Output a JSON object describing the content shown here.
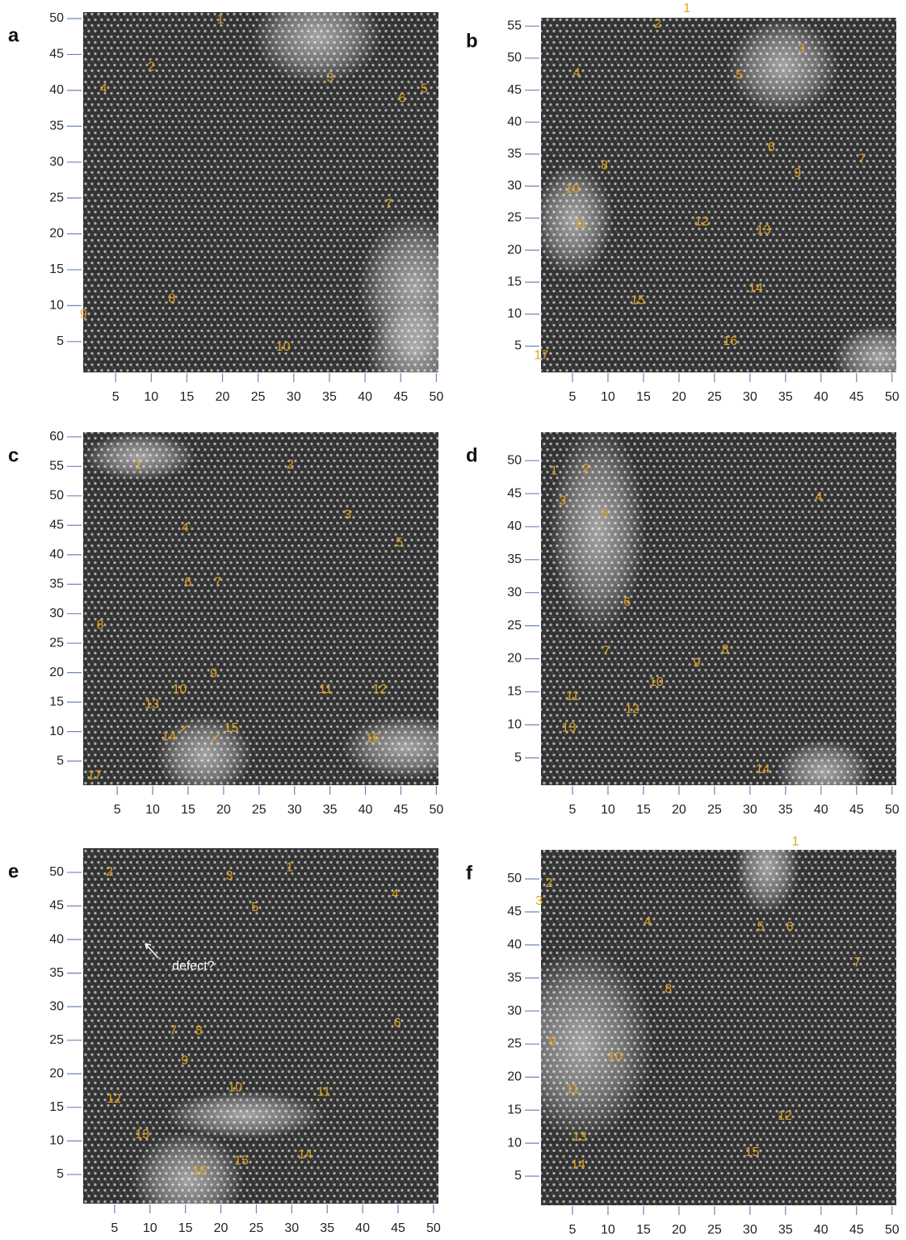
{
  "chart_data": [
    {
      "type": "image",
      "panel": "a",
      "xlim": [
        0.45,
        50.3
      ],
      "ylim": [
        0.7,
        50.9
      ],
      "xticks": [
        5,
        10,
        15,
        20,
        25,
        30,
        35,
        40,
        45,
        50
      ],
      "yticks": [
        5,
        10,
        15,
        20,
        25,
        30,
        35,
        40,
        45,
        50
      ],
      "label_color": "#e3a21a",
      "annotations": [
        {
          "label": "1",
          "x": 19.7,
          "y": 49.8
        },
        {
          "label": "2",
          "x": 10.0,
          "y": 43.2
        },
        {
          "label": "3",
          "x": 35.1,
          "y": 41.7
        },
        {
          "label": "4",
          "x": 3.3,
          "y": 40.2
        },
        {
          "label": "5",
          "x": 48.3,
          "y": 40.2
        },
        {
          "label": "6",
          "x": 45.2,
          "y": 38.8
        },
        {
          "label": "7",
          "x": 43.3,
          "y": 24.1
        },
        {
          "label": "8",
          "x": 12.9,
          "y": 10.9
        },
        {
          "label": "9",
          "x": 0.5,
          "y": 8.7
        },
        {
          "label": "10",
          "x": 28.5,
          "y": 4.2
        }
      ]
    },
    {
      "type": "image",
      "panel": "b",
      "xlim": [
        0.57,
        50.6
      ],
      "ylim": [
        0.9,
        56.3
      ],
      "xticks": [
        5,
        10,
        15,
        20,
        25,
        30,
        35,
        40,
        45,
        50
      ],
      "yticks": [
        5,
        10,
        15,
        20,
        25,
        30,
        35,
        40,
        45,
        50,
        55
      ],
      "label_color": "#e3a21a",
      "annotations": [
        {
          "label": "1",
          "x": 21.1,
          "y": 57.7
        },
        {
          "label": "2",
          "x": 17.0,
          "y": 55.3
        },
        {
          "label": "3",
          "x": 37.2,
          "y": 51.4
        },
        {
          "label": "4",
          "x": 5.6,
          "y": 47.6
        },
        {
          "label": "5",
          "x": 28.5,
          "y": 47.3
        },
        {
          "label": "6",
          "x": 33.0,
          "y": 36.0
        },
        {
          "label": "7",
          "x": 45.8,
          "y": 34.2
        },
        {
          "label": "8",
          "x": 9.5,
          "y": 33.2
        },
        {
          "label": "9",
          "x": 36.7,
          "y": 32.0
        },
        {
          "label": "10",
          "x": 5.0,
          "y": 29.5
        },
        {
          "label": "11",
          "x": 6.1,
          "y": 24.1
        },
        {
          "label": "12",
          "x": 23.2,
          "y": 24.4
        },
        {
          "label": "13",
          "x": 31.9,
          "y": 23.1
        },
        {
          "label": "14",
          "x": 30.8,
          "y": 14.0
        },
        {
          "label": "15",
          "x": 14.2,
          "y": 12.1
        },
        {
          "label": "16",
          "x": 27.2,
          "y": 5.7
        },
        {
          "label": "17",
          "x": 0.6,
          "y": 3.5
        }
      ]
    },
    {
      "type": "image",
      "panel": "c",
      "xlim": [
        0.2,
        50.3
      ],
      "ylim": [
        0.9,
        60.8
      ],
      "xticks": [
        5,
        10,
        15,
        20,
        25,
        30,
        35,
        40,
        45,
        50
      ],
      "yticks": [
        5,
        10,
        15,
        20,
        25,
        30,
        35,
        40,
        45,
        50,
        55,
        60
      ],
      "label_color": "#e3a21a",
      "annotations": [
        {
          "label": "1",
          "x": 8.0,
          "y": 55.2
        },
        {
          "label": "2",
          "x": 29.4,
          "y": 55.2
        },
        {
          "label": "3",
          "x": 37.5,
          "y": 46.7
        },
        {
          "label": "4",
          "x": 14.6,
          "y": 44.5
        },
        {
          "label": "5",
          "x": 44.8,
          "y": 42.0
        },
        {
          "label": "6",
          "x": 15.0,
          "y": 35.3
        },
        {
          "label": "7",
          "x": 19.2,
          "y": 35.3
        },
        {
          "label": "8",
          "x": 2.6,
          "y": 28.0
        },
        {
          "label": "9",
          "x": 18.6,
          "y": 19.8
        },
        {
          "label": "10",
          "x": 13.8,
          "y": 17.1
        },
        {
          "label": "11",
          "x": 34.4,
          "y": 17.1
        },
        {
          "label": "12",
          "x": 42.0,
          "y": 17.1
        },
        {
          "label": "13",
          "x": 9.9,
          "y": 14.6
        },
        {
          "label": "14",
          "x": 12.3,
          "y": 9.1
        },
        {
          "label": "15",
          "x": 21.1,
          "y": 10.5
        },
        {
          "label": "16",
          "x": 41.0,
          "y": 8.8
        },
        {
          "label": "17",
          "x": 1.8,
          "y": 2.5
        }
      ]
    },
    {
      "type": "image",
      "panel": "d",
      "xlim": [
        0.57,
        50.6
      ],
      "ylim": [
        0.86,
        54.3
      ],
      "xticks": [
        5,
        10,
        15,
        20,
        25,
        30,
        35,
        40,
        45,
        50
      ],
      "yticks": [
        5,
        10,
        15,
        20,
        25,
        30,
        35,
        40,
        45,
        50
      ],
      "label_color": "#e3a21a",
      "annotations": [
        {
          "label": "1",
          "x": 2.4,
          "y": 48.4
        },
        {
          "label": "2",
          "x": 6.9,
          "y": 48.7
        },
        {
          "label": "3",
          "x": 3.6,
          "y": 43.9
        },
        {
          "label": "4",
          "x": 39.7,
          "y": 44.4
        },
        {
          "label": "5",
          "x": 9.5,
          "y": 41.9
        },
        {
          "label": "6",
          "x": 12.7,
          "y": 28.5
        },
        {
          "label": "7",
          "x": 9.8,
          "y": 21.1
        },
        {
          "label": "8",
          "x": 26.5,
          "y": 21.3
        },
        {
          "label": "9",
          "x": 22.5,
          "y": 19.3
        },
        {
          "label": "10",
          "x": 16.8,
          "y": 16.4
        },
        {
          "label": "11",
          "x": 5.0,
          "y": 14.3
        },
        {
          "label": "12",
          "x": 13.4,
          "y": 12.3
        },
        {
          "label": "13",
          "x": 4.5,
          "y": 9.5
        },
        {
          "label": "14",
          "x": 31.8,
          "y": 3.2
        }
      ]
    },
    {
      "type": "image",
      "panel": "e",
      "xlim": [
        0.57,
        50.7
      ],
      "ylim": [
        0.66,
        53.6
      ],
      "xticks": [
        5,
        10,
        15,
        20,
        25,
        30,
        35,
        40,
        45,
        50
      ],
      "yticks": [
        5,
        10,
        15,
        20,
        25,
        30,
        35,
        40,
        45,
        50
      ],
      "label_color": "#e3a21a",
      "annotations": [
        {
          "label": "1",
          "x": 29.7,
          "y": 50.7
        },
        {
          "label": "2",
          "x": 4.3,
          "y": 50.0
        },
        {
          "label": "3",
          "x": 21.2,
          "y": 49.4
        },
        {
          "label": "4",
          "x": 44.6,
          "y": 46.7
        },
        {
          "label": "5",
          "x": 24.8,
          "y": 44.7
        },
        {
          "label": "defect?",
          "x": 16.1,
          "y": 36.0,
          "color": "#ffffff"
        },
        {
          "label": "6",
          "x": 44.9,
          "y": 27.5
        },
        {
          "label": "7",
          "x": 13.3,
          "y": 26.4
        },
        {
          "label": "8",
          "x": 16.9,
          "y": 26.4
        },
        {
          "label": "9",
          "x": 14.9,
          "y": 21.9
        },
        {
          "label": "10",
          "x": 22.0,
          "y": 17.9
        },
        {
          "label": "11",
          "x": 34.5,
          "y": 17.2
        },
        {
          "label": "12",
          "x": 4.9,
          "y": 16.2
        },
        {
          "label": "13",
          "x": 8.9,
          "y": 10.9
        },
        {
          "label": "14",
          "x": 31.9,
          "y": 7.9
        },
        {
          "label": "15",
          "x": 22.9,
          "y": 7.0
        },
        {
          "label": "16",
          "x": 17.0,
          "y": 5.5
        }
      ]
    },
    {
      "type": "image",
      "panel": "f",
      "xlim": [
        0.57,
        50.6
      ],
      "ylim": [
        0.6,
        54.4
      ],
      "xticks": [
        5,
        10,
        15,
        20,
        25,
        30,
        35,
        40,
        45,
        50
      ],
      "yticks": [
        5,
        10,
        15,
        20,
        25,
        30,
        35,
        40,
        45,
        50
      ],
      "label_color": "#e3a21a",
      "annotations": [
        {
          "label": "1",
          "x": 36.4,
          "y": 55.6
        },
        {
          "label": "2",
          "x": 1.7,
          "y": 49.3
        },
        {
          "label": "3",
          "x": 0.3,
          "y": 46.6
        },
        {
          "label": "4",
          "x": 15.6,
          "y": 43.5
        },
        {
          "label": "5",
          "x": 31.5,
          "y": 42.7
        },
        {
          "label": "6",
          "x": 35.6,
          "y": 42.7
        },
        {
          "label": "7",
          "x": 45.1,
          "y": 37.3
        },
        {
          "label": "8",
          "x": 18.5,
          "y": 33.3
        },
        {
          "label": "9",
          "x": 2.2,
          "y": 25.3
        },
        {
          "label": "10",
          "x": 11.0,
          "y": 23.0
        },
        {
          "label": "11",
          "x": 5.0,
          "y": 18.1
        },
        {
          "label": "12",
          "x": 34.9,
          "y": 14.1
        },
        {
          "label": "13",
          "x": 6.0,
          "y": 10.9
        },
        {
          "label": "14",
          "x": 5.8,
          "y": 6.7
        },
        {
          "label": "15",
          "x": 30.3,
          "y": 8.6
        }
      ]
    }
  ]
}
